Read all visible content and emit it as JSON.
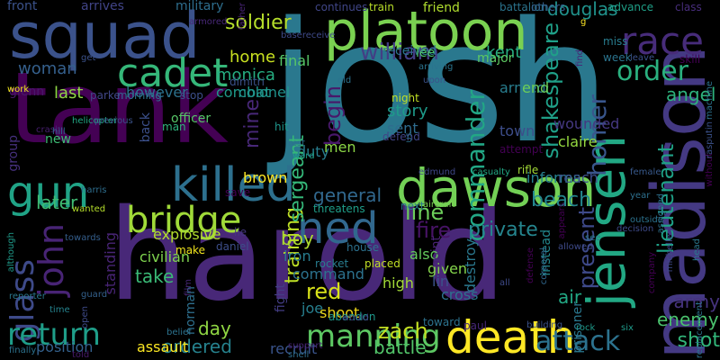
{
  "words": [
    {
      "text": "josh",
      "color": "#2a788e",
      "rotated": false
    },
    {
      "text": "harold",
      "color": "#482878",
      "rotated": false
    },
    {
      "text": "tank",
      "color": "#440154",
      "rotated": false
    },
    {
      "text": "squad",
      "color": "#3b528b",
      "rotated": false
    },
    {
      "text": "platoon",
      "color": "#7ad151",
      "rotated": false
    },
    {
      "text": "madison",
      "color": "#443983",
      "rotated": true
    },
    {
      "text": "dawson",
      "color": "#73d056",
      "rotated": false
    },
    {
      "text": "killed",
      "color": "#2d708e",
      "rotated": false
    },
    {
      "text": "jensen",
      "color": "#22a884",
      "rotated": true
    },
    {
      "text": "death",
      "color": "#fde725",
      "rotated": false
    },
    {
      "text": "ned",
      "color": "#31688e",
      "rotated": false
    },
    {
      "text": "gun",
      "color": "#20a386",
      "rotated": false
    },
    {
      "text": "cadet",
      "color": "#35b779",
      "rotated": false
    },
    {
      "text": "race",
      "color": "#472c7a",
      "rotated": false
    },
    {
      "text": "bridge",
      "color": "#a0da39",
      "rotated": false
    },
    {
      "text": "glass",
      "color": "#3e4a89",
      "rotated": true
    },
    {
      "text": "john",
      "color": "#482475",
      "rotated": true
    },
    {
      "text": "manning",
      "color": "#5dc863",
      "rotated": false
    },
    {
      "text": "attack",
      "color": "#2c728e",
      "rotated": false
    },
    {
      "text": "return",
      "color": "#1f9e89",
      "rotated": false
    },
    {
      "text": "order",
      "color": "#2ab07f",
      "rotated": false
    },
    {
      "text": "homer",
      "color": "#39568c",
      "rotated": true
    },
    {
      "text": "commander",
      "color": "#22a785",
      "rotated": true
    },
    {
      "text": "shakespeare",
      "color": "#1fa088",
      "rotated": true
    },
    {
      "text": "lieutenant",
      "color": "#1fa187",
      "rotated": true
    },
    {
      "text": "begin",
      "color": "#48186a",
      "rotated": true
    },
    {
      "text": "william",
      "color": "#433e85",
      "rotated": false
    },
    {
      "text": "soldier",
      "color": "#b5de2b",
      "rotated": false
    },
    {
      "text": "douglas",
      "color": "#20928c",
      "rotated": false
    },
    {
      "text": "private",
      "color": "#25858e",
      "rotated": false
    },
    {
      "text": "fire",
      "color": "#471365",
      "rotated": false
    },
    {
      "text": "red",
      "color": "#d8e219",
      "rotated": false
    },
    {
      "text": "zach",
      "color": "#c2df23",
      "rotated": false
    },
    {
      "text": "shot",
      "color": "#32b67a",
      "rotated": false
    },
    {
      "text": "training",
      "color": "#bddf26",
      "rotated": true
    },
    {
      "text": "present",
      "color": "#3e4989",
      "rotated": true
    },
    {
      "text": "line",
      "color": "#6ccd5a",
      "rotated": false
    },
    {
      "text": "sergeant",
      "color": "#35b779",
      "rotated": true
    },
    {
      "text": "mine",
      "color": "#482878",
      "rotated": true
    },
    {
      "text": "general",
      "color": "#31688e",
      "rotated": false
    },
    {
      "text": "beach",
      "color": "#24878e",
      "rotated": false
    },
    {
      "text": "angel",
      "color": "#2db27d",
      "rotated": false
    },
    {
      "text": "later",
      "color": "#3fbc73",
      "rotated": false
    },
    {
      "text": "boy",
      "color": "#addc30",
      "rotated": false
    },
    {
      "text": "day",
      "color": "#90d743",
      "rotated": false
    },
    {
      "text": "battle",
      "color": "#52c569",
      "rotated": false
    },
    {
      "text": "enemy",
      "color": "#4ac16d",
      "rotated": false
    },
    {
      "text": "army",
      "color": "#46337e",
      "rotated": false
    },
    {
      "text": "take",
      "color": "#3aba76",
      "rotated": false
    },
    {
      "text": "ordered",
      "color": "#26828e",
      "rotated": false
    },
    {
      "text": "last",
      "color": "#8fd744",
      "rotated": false
    },
    {
      "text": "woman",
      "color": "#35608d",
      "rotated": false
    },
    {
      "text": "home",
      "color": "#c8e020",
      "rotated": false
    },
    {
      "text": "monica",
      "color": "#26ad81",
      "rotated": false
    },
    {
      "text": "combat",
      "color": "#1f9a8a",
      "rotated": false
    },
    {
      "text": "kent",
      "color": "#26ad81",
      "rotated": false
    },
    {
      "text": "story",
      "color": "#1e9b8a",
      "rotated": false
    },
    {
      "text": "sent",
      "color": "#2f6c8e",
      "rotated": false
    },
    {
      "text": "town",
      "color": "#3d4d8a",
      "rotated": false
    },
    {
      "text": "informs",
      "color": "#26818e",
      "rotated": false
    },
    {
      "text": "reach",
      "color": "#3c4f8a",
      "rotated": false
    },
    {
      "text": "claire",
      "color": "#94d840",
      "rotated": false
    },
    {
      "text": "wounded",
      "color": "#453882",
      "rotated": false
    },
    {
      "text": "armed",
      "color": "#287d8e",
      "rotated": false
    },
    {
      "text": "end",
      "color": "#6ece58",
      "rotated": false
    },
    {
      "text": "also",
      "color": "#65cb5e",
      "rotated": false
    },
    {
      "text": "given",
      "color": "#84d44b",
      "rotated": false
    },
    {
      "text": "lin",
      "color": "#3b528b",
      "rotated": false
    },
    {
      "text": "cross",
      "color": "#2d718e",
      "rotated": false
    },
    {
      "text": "point",
      "color": "#482173",
      "rotated": true
    },
    {
      "text": "destroy",
      "color": "#2a788e",
      "rotated": true
    },
    {
      "text": "explosive",
      "color": "#b2dd2d",
      "rotated": false
    },
    {
      "text": "civilian",
      "color": "#7fd34e",
      "rotated": false
    },
    {
      "text": "iron",
      "color": "#287c8e",
      "rotated": false
    },
    {
      "text": "command",
      "color": "#2c728e",
      "rotated": false
    },
    {
      "text": "high",
      "color": "#a2da37",
      "rotated": false
    },
    {
      "text": "joe",
      "color": "#277f8e",
      "rotated": false
    },
    {
      "text": "shoot",
      "color": "#ecd619",
      "rotated": false
    },
    {
      "text": "assault",
      "color": "#fbe723",
      "rotated": false
    },
    {
      "text": "recruit",
      "color": "#3a548c",
      "rotated": false
    },
    {
      "text": "position",
      "color": "#34618d",
      "rotated": false
    },
    {
      "text": "air",
      "color": "#22a884",
      "rotated": false
    },
    {
      "text": "standing",
      "color": "#482475",
      "rotated": true
    },
    {
      "text": "men",
      "color": "#8bd646",
      "rotated": false
    },
    {
      "text": "duty",
      "color": "#287d8e",
      "rotated": false
    },
    {
      "text": "group",
      "color": "#46307e",
      "rotated": true
    },
    {
      "text": "new",
      "color": "#3dbc74",
      "rotated": false
    },
    {
      "text": "glenn",
      "color": "#48186a",
      "rotated": false
    },
    {
      "text": "however",
      "color": "#2c728e",
      "rotated": false
    },
    {
      "text": "colonel",
      "color": "#20928c",
      "rotated": false
    },
    {
      "text": "final",
      "color": "#56c667",
      "rotated": false
    },
    {
      "text": "brown",
      "color": "#fde725",
      "rotated": false
    },
    {
      "text": "officer",
      "color": "#56c667",
      "rotated": false
    },
    {
      "text": "back",
      "color": "#3c508b",
      "rotated": true
    },
    {
      "text": "norman",
      "color": "#2e6f8e",
      "rotated": true
    },
    {
      "text": "fight",
      "color": "#433d84",
      "rotated": true
    },
    {
      "text": "instead",
      "color": "#23888e",
      "rotated": true
    },
    {
      "text": "prisoner",
      "color": "#2a778e",
      "rotated": true
    },
    {
      "text": "front",
      "color": "#3b528b",
      "rotated": false
    },
    {
      "text": "arrives",
      "color": "#414487",
      "rotated": false
    },
    {
      "text": "military",
      "color": "#2e6e8e",
      "rotated": false
    },
    {
      "text": "friend",
      "color": "#b0dd2f",
      "rotated": false
    },
    {
      "text": "battalion",
      "color": "#2b748e",
      "rotated": false
    },
    {
      "text": "advance",
      "color": "#1fa088",
      "rotated": false
    },
    {
      "text": "class",
      "color": "#472d7b",
      "rotated": false
    },
    {
      "text": "train",
      "color": "#b8de29",
      "rotated": false
    },
    {
      "text": "continues",
      "color": "#404688",
      "rotated": false
    },
    {
      "text": "others",
      "color": "#355f8d",
      "rotated": false
    },
    {
      "text": "received",
      "color": "#2b758e",
      "rotated": false
    },
    {
      "text": "lee",
      "color": "#4ac16d",
      "rotated": false
    },
    {
      "text": "major",
      "color": "#5ec962",
      "rotated": false
    },
    {
      "text": "miss",
      "color": "#287c8e",
      "rotated": false
    },
    {
      "text": "week",
      "color": "#2b748e",
      "rotated": false
    },
    {
      "text": "leave",
      "color": "#3b528b",
      "rotated": false
    },
    {
      "text": "skill",
      "color": "#440154",
      "rotated": false
    },
    {
      "text": "man",
      "color": "#2fb47c",
      "rotated": false
    },
    {
      "text": "hit",
      "color": "#1f958b",
      "rotated": false
    },
    {
      "text": "save",
      "color": "#440154",
      "rotated": false
    },
    {
      "text": "dimitri",
      "color": "#3b528b",
      "rotated": false
    },
    {
      "text": "stop",
      "color": "#3c4f8a",
      "rotated": false
    },
    {
      "text": "morning",
      "color": "#2d708e",
      "rotated": false
    },
    {
      "text": "parker",
      "color": "#404688",
      "rotated": false
    },
    {
      "text": "night",
      "color": "#c0df25",
      "rotated": false
    },
    {
      "text": "defend",
      "color": "#414487",
      "rotated": false
    },
    {
      "text": "attempt",
      "color": "#440154",
      "rotated": false
    },
    {
      "text": "edmund",
      "color": "#3f4788",
      "rotated": false
    },
    {
      "text": "casualty",
      "color": "#22a884",
      "rotated": false
    },
    {
      "text": "rifle",
      "color": "#a2da37",
      "rotated": false
    },
    {
      "text": "next",
      "color": "#2a778e",
      "rotated": false
    },
    {
      "text": "aircraft",
      "color": "#7ad151",
      "rotated": false
    },
    {
      "text": "threatens",
      "color": "#1f9e89",
      "rotated": false
    },
    {
      "text": "house",
      "color": "#2c718e",
      "rotated": false
    },
    {
      "text": "lie",
      "color": "#453781",
      "rotated": false
    },
    {
      "text": "daniel",
      "color": "#3d4e8a",
      "rotated": false
    },
    {
      "text": "make",
      "color": "#f1e51d",
      "rotated": false
    },
    {
      "text": "placed",
      "color": "#c0df25",
      "rotated": false
    },
    {
      "text": "rocket",
      "color": "#287c8e",
      "rotated": false
    },
    {
      "text": "abandon",
      "color": "#1f988b",
      "rotated": false
    },
    {
      "text": "would",
      "color": "#433e85",
      "rotated": false
    },
    {
      "text": "toward",
      "color": "#2c728e",
      "rotated": false
    },
    {
      "text": "paul",
      "color": "#482878",
      "rotated": false
    },
    {
      "text": "building",
      "color": "#3b528b",
      "rotated": false
    },
    {
      "text": "rock",
      "color": "#1f9a8a",
      "rotated": false
    },
    {
      "text": "six",
      "color": "#1f9a8a",
      "rotated": false
    },
    {
      "text": "shell",
      "color": "#2e6e8e",
      "rotated": false
    },
    {
      "text": "support",
      "color": "#482475",
      "rotated": false
    },
    {
      "text": "told",
      "color": "#481b6d",
      "rotated": false
    },
    {
      "text": "time",
      "color": "#25838e",
      "rotated": false
    },
    {
      "text": "guard",
      "color": "#34618d",
      "rotated": false
    },
    {
      "text": "reporter",
      "color": "#2a788e",
      "rotated": false
    },
    {
      "text": "finally",
      "color": "#2c728e",
      "rotated": false
    },
    {
      "text": "crash",
      "color": "#481f70",
      "rotated": false
    },
    {
      "text": "hill",
      "color": "#31688e",
      "rotated": false
    },
    {
      "text": "helicopter",
      "color": "#22a884",
      "rotated": false
    },
    {
      "text": "previous",
      "color": "#3b528b",
      "rotated": false
    },
    {
      "text": "towards",
      "color": "#355f8d",
      "rotated": false
    },
    {
      "text": "wanted",
      "color": "#b5de2b",
      "rotated": false
    },
    {
      "text": "harris",
      "color": "#2e6e8e",
      "rotated": false
    },
    {
      "text": "decision",
      "color": "#3e4a89",
      "rotated": false
    },
    {
      "text": "outside",
      "color": "#2c728e",
      "rotated": false
    },
    {
      "text": "year",
      "color": "#2d708e",
      "rotated": false
    },
    {
      "text": "female",
      "color": "#38598c",
      "rotated": false
    },
    {
      "text": "see",
      "color": "#2a788e",
      "rotated": false
    },
    {
      "text": "allowed",
      "color": "#3e4a89",
      "rotated": false
    },
    {
      "text": "get",
      "color": "#3b528b",
      "rotated": false
    },
    {
      "text": "work",
      "color": "#f1e51d",
      "rotated": false
    },
    {
      "text": "basereceive",
      "color": "#3e4a89",
      "rotated": false
    },
    {
      "text": "rest",
      "color": "#2c728e",
      "rotated": false
    },
    {
      "text": "ward",
      "color": "#1fa187",
      "rotated": false
    },
    {
      "text": "arriving",
      "color": "#2b748e",
      "rotated": false
    },
    {
      "text": "upon",
      "color": "#3b528b",
      "rotated": false
    },
    {
      "text": "g",
      "color": "#fde725",
      "rotated": false
    },
    {
      "text": "armored",
      "color": "#482878",
      "rotated": false
    },
    {
      "text": "father",
      "color": "#482475",
      "rotated": true
    },
    {
      "text": "corporal",
      "color": "#31688e",
      "rotated": true
    },
    {
      "text": "company",
      "color": "#440154",
      "rotated": true
    },
    {
      "text": "michelle",
      "color": "#3e4a89",
      "rotated": true
    },
    {
      "text": "head",
      "color": "#2a788e",
      "rotated": true
    },
    {
      "text": "without",
      "color": "#440154",
      "rotated": true
    },
    {
      "text": "rasputin",
      "color": "#3b528b",
      "rotated": true
    },
    {
      "text": "machine",
      "color": "#2c728e",
      "rotated": true
    },
    {
      "text": "assigned",
      "color": "#2d708e",
      "rotated": true
    },
    {
      "text": "appears",
      "color": "#440154",
      "rotated": true
    },
    {
      "text": "defense",
      "color": "#440154",
      "rotated": true
    },
    {
      "text": "replacement",
      "color": "#2c728e",
      "rotated": true
    },
    {
      "text": "although",
      "color": "#1f9a8a",
      "rotated": true
    },
    {
      "text": "open",
      "color": "#3e4a89",
      "rotated": true
    },
    {
      "text": "old",
      "color": "#2c728e",
      "rotated": false
    },
    {
      "text": "film",
      "color": "#482878",
      "rotated": true
    },
    {
      "text": "belief",
      "color": "#2c728e",
      "rotated": false
    },
    {
      "text": "us",
      "color": "#2c728e",
      "rotated": true
    },
    {
      "text": "find",
      "color": "#482475",
      "rotated": true
    },
    {
      "text": "all",
      "color": "#3e4a89",
      "rotated": false
    }
  ]
}
